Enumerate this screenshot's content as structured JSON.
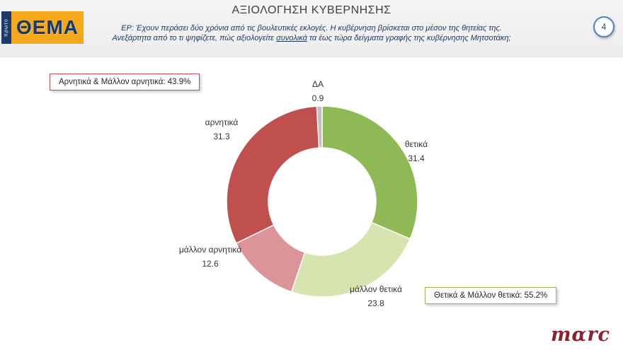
{
  "header": {
    "title": "ΑΞΙΟΛΟΓΗΣΗ ΚΥΒΕΡΝΗΣΗΣ",
    "question_line1": "ΕΡ: Έχουν περάσει δύο χρόνια από τις βουλευτικές εκλογές. Η κυβέρνηση βρίσκεται στο μέσον της θητείας της.",
    "question_line2_pre": "Ανεξάρτητα από το τι ψηφίζετε, πώς αξιολογείτε ",
    "question_line2_underlined": "συνολικά",
    "question_line2_post": " τα έως τώρα δείγματα γραφής της κυβέρνησης Μητσοτάκη;",
    "page_number": "4",
    "logo_strip_text": "πρωτο",
    "logo_text": "ΘΕΜΑ"
  },
  "summary_boxes": {
    "negative": {
      "label": "Αρνητικά & Μάλλον αρνητικά: 43.9%",
      "border_color": "#c0504d"
    },
    "positive": {
      "label": "Θετικά & Μάλλον θετικά: 55.2%",
      "border_color": "#9bbb59"
    }
  },
  "chart_data": {
    "type": "pie",
    "subtype": "donut",
    "title": "ΑΞΙΟΛΟΓΗΣΗ ΚΥΒΕΡΝΗΣΗΣ",
    "start_angle_deg": 0,
    "direction": "clockwise",
    "inner_radius_ratio": 0.56,
    "total": 100,
    "segments": [
      {
        "label": "θετικά",
        "value": 31.4,
        "value_label": "31.4",
        "color": "#8eb954"
      },
      {
        "label": "μάλλον θετικά",
        "value": 23.8,
        "value_label": "23.8",
        "color": "#d6e4b0"
      },
      {
        "label": "μάλλον αρνητικά",
        "value": 12.6,
        "value_label": "12.6",
        "color": "#dc9498"
      },
      {
        "label": "αρνητικά",
        "value": 31.3,
        "value_label": "31.3",
        "color": "#c0504d"
      },
      {
        "label": "ΔΑ",
        "value": 0.9,
        "value_label": "0.9",
        "color": "#c0c0c0"
      }
    ]
  },
  "footer": {
    "logo_text": "mαrc"
  }
}
